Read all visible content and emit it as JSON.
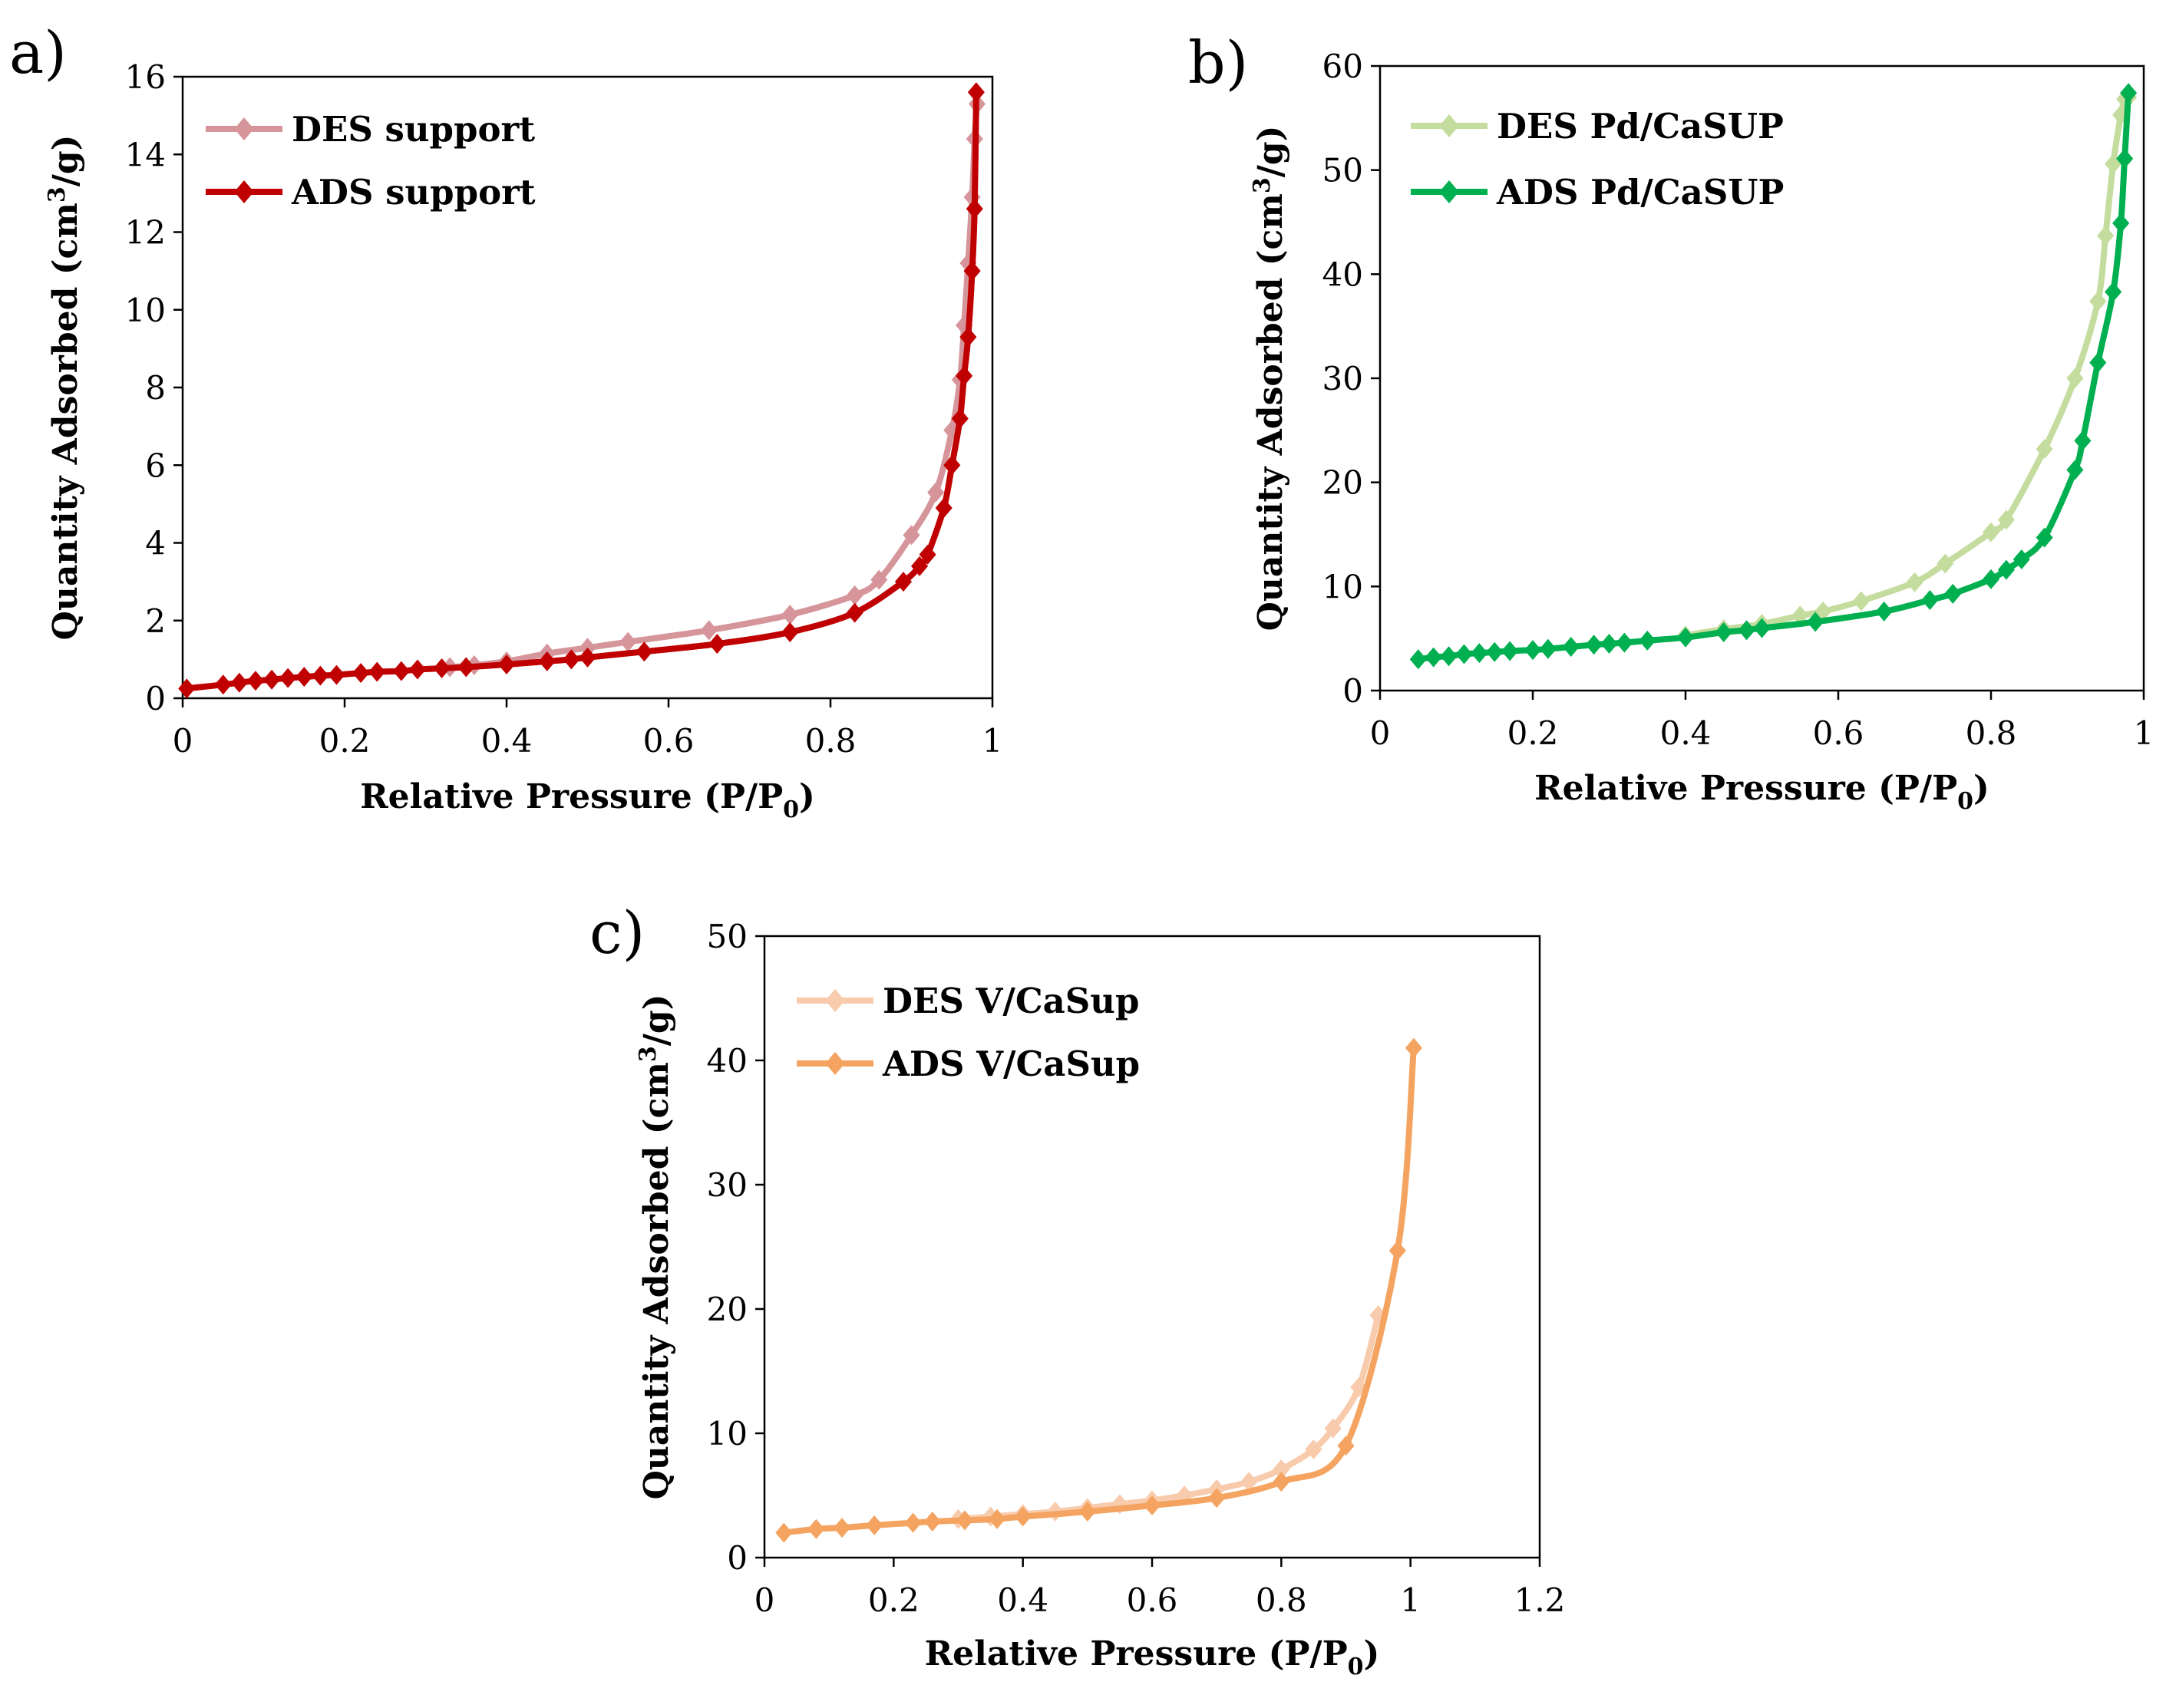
{
  "chart_data": [
    {
      "type": "line",
      "panel_label": "a)",
      "xlabel": "Relative Pressure (P/P",
      "xlabel_sub": "0",
      "xlabel_close": ")",
      "ylabel_pre": "Quantity Adsorbed (cm",
      "ylabel_sup": "3",
      "ylabel_post": "/g)",
      "xlim": [
        0,
        1
      ],
      "ylim": [
        0,
        16
      ],
      "xticks": [
        "0",
        "0.2",
        "0.4",
        "0.6",
        "0.8",
        "1"
      ],
      "yticks": [
        "0",
        "2",
        "4",
        "6",
        "8",
        "10",
        "12",
        "14",
        "16"
      ],
      "grid": false,
      "legend_position": "top-left",
      "series": [
        {
          "name": "DES support",
          "color": "#d6959a",
          "x": [
            0.33,
            0.36,
            0.4,
            0.45,
            0.5,
            0.55,
            0.65,
            0.75,
            0.83,
            0.86,
            0.9,
            0.93,
            0.95,
            0.96,
            0.965,
            0.97,
            0.975,
            0.978,
            0.981
          ],
          "y": [
            0.8,
            0.85,
            0.95,
            1.15,
            1.3,
            1.45,
            1.75,
            2.15,
            2.65,
            3.05,
            4.2,
            5.3,
            6.9,
            8.2,
            9.6,
            11.2,
            12.9,
            14.4,
            15.3
          ]
        },
        {
          "name": "ADS support",
          "color": "#c00000",
          "x": [
            0.005,
            0.05,
            0.07,
            0.09,
            0.11,
            0.13,
            0.15,
            0.17,
            0.19,
            0.22,
            0.24,
            0.27,
            0.29,
            0.32,
            0.35,
            0.4,
            0.45,
            0.48,
            0.5,
            0.57,
            0.66,
            0.75,
            0.83,
            0.89,
            0.91,
            0.92,
            0.94,
            0.95,
            0.96,
            0.965,
            0.97,
            0.975,
            0.978,
            0.98
          ],
          "y": [
            0.25,
            0.35,
            0.4,
            0.45,
            0.48,
            0.52,
            0.55,
            0.58,
            0.6,
            0.65,
            0.68,
            0.7,
            0.74,
            0.77,
            0.8,
            0.87,
            0.95,
            1.0,
            1.05,
            1.2,
            1.4,
            1.7,
            2.2,
            3.0,
            3.4,
            3.7,
            4.9,
            6.0,
            7.2,
            8.3,
            9.3,
            11.0,
            12.6,
            15.6
          ]
        }
      ]
    },
    {
      "type": "line",
      "panel_label": "b)",
      "xlabel": "Relative Pressure (P/P",
      "xlabel_sub": "0",
      "xlabel_close": ")",
      "ylabel_pre": "Quantity Adsorbed (cm",
      "ylabel_sup": "3",
      "ylabel_post": "/g)",
      "xlim": [
        0,
        1
      ],
      "ylim": [
        0,
        60
      ],
      "xticks": [
        "0",
        "0.2",
        "0.4",
        "0.6",
        "0.8",
        "1"
      ],
      "yticks": [
        "0",
        "10",
        "20",
        "30",
        "40",
        "50",
        "60"
      ],
      "grid": false,
      "legend_position": "top-left",
      "series": [
        {
          "name": "DES Pd/CaSUP",
          "color": "#c4dc9e",
          "x": [
            0.4,
            0.45,
            0.5,
            0.55,
            0.58,
            0.63,
            0.7,
            0.74,
            0.8,
            0.82,
            0.87,
            0.91,
            0.94,
            0.95,
            0.96,
            0.97,
            0.975,
            0.98
          ],
          "y": [
            5.3,
            5.9,
            6.4,
            7.2,
            7.6,
            8.6,
            10.4,
            12.2,
            15.2,
            16.4,
            23.2,
            30.0,
            37.4,
            43.7,
            50.6,
            55.3,
            56.8,
            57.0
          ]
        },
        {
          "name": "ADS Pd/CaSUP",
          "color": "#00b050",
          "x": [
            0.05,
            0.07,
            0.09,
            0.11,
            0.13,
            0.15,
            0.17,
            0.2,
            0.22,
            0.25,
            0.28,
            0.3,
            0.32,
            0.35,
            0.4,
            0.45,
            0.48,
            0.5,
            0.57,
            0.66,
            0.72,
            0.75,
            0.8,
            0.82,
            0.84,
            0.87,
            0.91,
            0.92,
            0.94,
            0.96,
            0.97,
            0.975,
            0.98
          ],
          "y": [
            3.0,
            3.2,
            3.3,
            3.5,
            3.6,
            3.7,
            3.8,
            3.9,
            4.0,
            4.2,
            4.4,
            4.5,
            4.6,
            4.8,
            5.1,
            5.6,
            5.8,
            6.0,
            6.6,
            7.6,
            8.7,
            9.3,
            10.7,
            11.6,
            12.6,
            14.7,
            21.2,
            24.0,
            31.5,
            38.3,
            44.9,
            51.1,
            57.4
          ]
        }
      ]
    },
    {
      "type": "line",
      "panel_label": "c)",
      "xlabel": "Relative Pressure (P/P",
      "xlabel_sub": "0",
      "xlabel_close": ")",
      "ylabel_pre": "Quantity Adsorbed (cm",
      "ylabel_sup": "3",
      "ylabel_post": "/g)",
      "xlim": [
        0,
        1.2
      ],
      "ylim": [
        0,
        50
      ],
      "xticks": [
        "0",
        "0.2",
        "0.4",
        "0.6",
        "0.8",
        "1",
        "1.2"
      ],
      "yticks": [
        "0",
        "10",
        "20",
        "30",
        "40",
        "50"
      ],
      "grid": false,
      "legend_position": "top-left",
      "series": [
        {
          "name": "DES V/CaSup",
          "color": "#f8cbad",
          "x": [
            0.3,
            0.35,
            0.4,
            0.45,
            0.5,
            0.55,
            0.6,
            0.65,
            0.7,
            0.75,
            0.8,
            0.85,
            0.88,
            0.92,
            0.95
          ],
          "y": [
            3.1,
            3.3,
            3.5,
            3.7,
            4.0,
            4.3,
            4.6,
            5.0,
            5.5,
            6.1,
            7.1,
            8.7,
            10.4,
            13.7,
            19.5
          ]
        },
        {
          "name": "ADS V/CaSup",
          "color": "#f4a460",
          "x": [
            0.03,
            0.08,
            0.12,
            0.17,
            0.23,
            0.26,
            0.31,
            0.36,
            0.4,
            0.5,
            0.6,
            0.7,
            0.8,
            0.9,
            0.98,
            1.005
          ],
          "y": [
            2.0,
            2.3,
            2.4,
            2.6,
            2.8,
            2.9,
            3.0,
            3.1,
            3.3,
            3.7,
            4.2,
            4.8,
            6.1,
            9.0,
            24.7,
            41.0
          ]
        }
      ]
    }
  ]
}
